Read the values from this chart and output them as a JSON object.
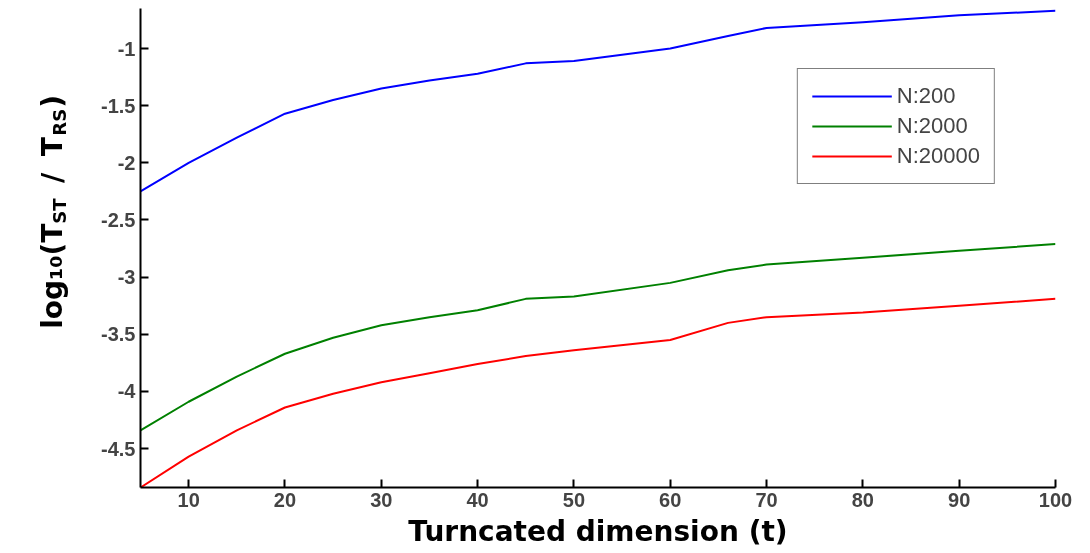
{
  "chart_data": {
    "type": "line",
    "xlabel": "Turncated dimension (t)",
    "ylabel": "log₁₀(T$_{ST}$ / T$_{RS}$)",
    "x": [
      5,
      10,
      15,
      20,
      25,
      30,
      35,
      40,
      45,
      50,
      60,
      66,
      70,
      80,
      90,
      100
    ],
    "series": [
      {
        "name": "N:200",
        "color": "#0000ff",
        "values": [
          -2.25,
          -2.0,
          -1.78,
          -1.57,
          -1.45,
          -1.35,
          -1.28,
          -1.22,
          -1.13,
          -1.11,
          -1.0,
          -0.89,
          -0.82,
          -0.77,
          -0.71,
          -0.67
        ]
      },
      {
        "name": "N:2000",
        "color": "#008000",
        "values": [
          -4.34,
          -4.09,
          -3.87,
          -3.67,
          -3.53,
          -3.42,
          -3.35,
          -3.29,
          -3.19,
          -3.17,
          -3.05,
          -2.94,
          -2.89,
          -2.83,
          -2.77,
          -2.71
        ]
      },
      {
        "name": "N:20000",
        "color": "#ff0000",
        "values": [
          -4.84,
          -4.57,
          -4.34,
          -4.14,
          -4.02,
          -3.92,
          -3.84,
          -3.76,
          -3.69,
          -3.64,
          -3.55,
          -3.4,
          -3.35,
          -3.31,
          -3.25,
          -3.19
        ]
      }
    ],
    "xlim": [
      5,
      100
    ],
    "ylim": [
      -4.84,
      -0.65
    ],
    "xticks": [
      10,
      20,
      30,
      40,
      50,
      60,
      70,
      80,
      90,
      100
    ],
    "yticks": [
      -4.5,
      -4,
      -3.5,
      -3,
      -2.5,
      -2,
      -1.5,
      -1
    ],
    "grid": false,
    "legend": "top right",
    "line_style": "solid",
    "marker": "none"
  }
}
